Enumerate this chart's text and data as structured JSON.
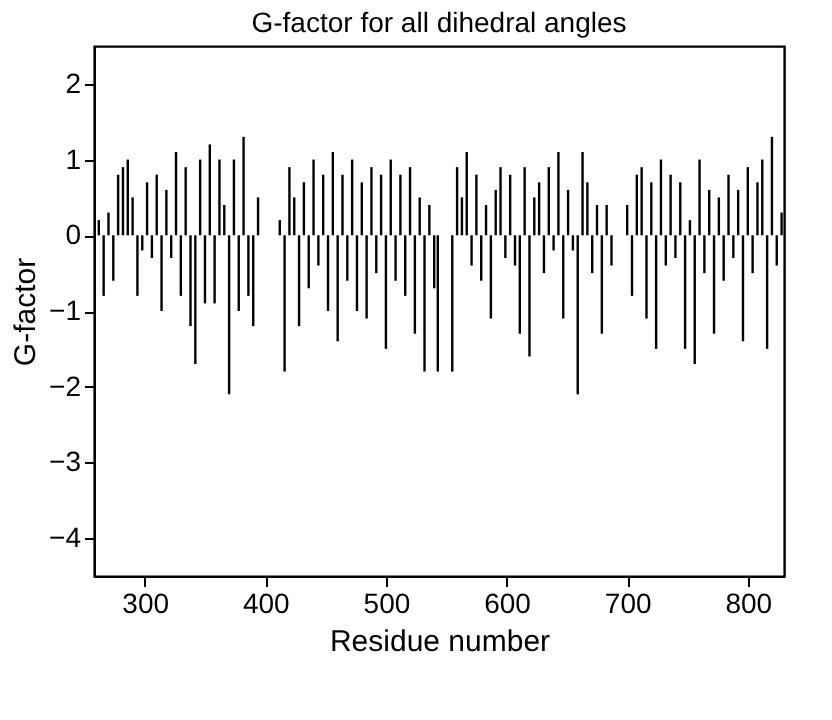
{
  "chart_data": {
    "type": "bar",
    "title": "G-factor for all dihedral angles",
    "xlabel": "Residue number",
    "ylabel": "G-factor",
    "x": [
      262,
      266,
      270,
      274,
      278,
      282,
      286,
      290,
      294,
      298,
      302,
      306,
      310,
      314,
      318,
      322,
      326,
      330,
      334,
      338,
      342,
      346,
      350,
      354,
      358,
      362,
      366,
      370,
      374,
      378,
      382,
      386,
      390,
      394,
      412,
      416,
      420,
      424,
      428,
      432,
      436,
      440,
      444,
      448,
      452,
      456,
      460,
      464,
      468,
      472,
      476,
      480,
      484,
      488,
      492,
      496,
      500,
      504,
      508,
      512,
      516,
      520,
      524,
      528,
      532,
      536,
      540,
      543,
      555,
      559,
      563,
      567,
      571,
      575,
      579,
      583,
      587,
      591,
      595,
      599,
      603,
      607,
      611,
      615,
      619,
      623,
      627,
      631,
      635,
      639,
      643,
      647,
      651,
      655,
      659,
      663,
      667,
      671,
      675,
      679,
      683,
      687,
      700,
      704,
      708,
      712,
      716,
      720,
      724,
      728,
      732,
      736,
      740,
      744,
      748,
      752,
      756,
      760,
      764,
      768,
      772,
      776,
      780,
      784,
      788,
      792,
      796,
      800,
      804,
      808,
      812,
      816,
      820,
      824,
      828
    ],
    "values": [
      0.2,
      -0.8,
      0.3,
      -0.6,
      0.8,
      0.9,
      1.0,
      0.5,
      -0.8,
      -0.2,
      0.7,
      -0.3,
      0.8,
      -1.0,
      0.6,
      -0.3,
      1.1,
      -0.8,
      0.9,
      -1.2,
      -1.7,
      1.0,
      -0.9,
      1.2,
      -0.9,
      1.0,
      0.4,
      -2.1,
      1.0,
      -1.0,
      1.3,
      -0.8,
      -1.2,
      0.5,
      0.2,
      -1.8,
      0.9,
      0.5,
      -1.2,
      0.7,
      -0.7,
      1.0,
      -0.4,
      0.8,
      -1.0,
      1.1,
      -1.4,
      0.8,
      -0.6,
      1.0,
      -1.0,
      0.7,
      -1.1,
      0.9,
      -0.5,
      0.8,
      -1.5,
      1.0,
      -0.6,
      0.8,
      -0.8,
      0.9,
      -1.3,
      0.5,
      -1.8,
      0.4,
      -0.7,
      -1.8,
      -1.8,
      0.9,
      0.5,
      1.1,
      -0.4,
      0.8,
      -0.6,
      0.4,
      -1.1,
      0.6,
      0.9,
      -0.3,
      0.8,
      -0.4,
      -1.3,
      0.9,
      -1.6,
      0.5,
      0.7,
      -0.5,
      0.9,
      -0.2,
      1.1,
      -1.1,
      0.6,
      -0.2,
      -2.1,
      1.1,
      0.7,
      -0.5,
      0.4,
      -1.3,
      0.4,
      -0.4,
      0.4,
      -0.8,
      0.8,
      0.9,
      -1.1,
      0.7,
      -1.5,
      1.0,
      -0.4,
      0.8,
      -0.3,
      0.7,
      -1.5,
      0.2,
      -1.7,
      1.0,
      -0.5,
      0.6,
      -1.3,
      0.5,
      -0.6,
      0.8,
      -0.3,
      0.6,
      -1.4,
      0.9,
      -0.5,
      0.7,
      1.0,
      -1.5,
      1.3,
      -0.4,
      0.3
    ],
    "color": "#000000",
    "xlim": [
      258,
      830
    ],
    "xticks": [
      300,
      400,
      500,
      600,
      700,
      800
    ],
    "ylim": [
      -4.5,
      2.5
    ],
    "yticks": [
      -4,
      -3,
      -2,
      -1,
      0,
      1,
      2
    ],
    "grid": false
  }
}
